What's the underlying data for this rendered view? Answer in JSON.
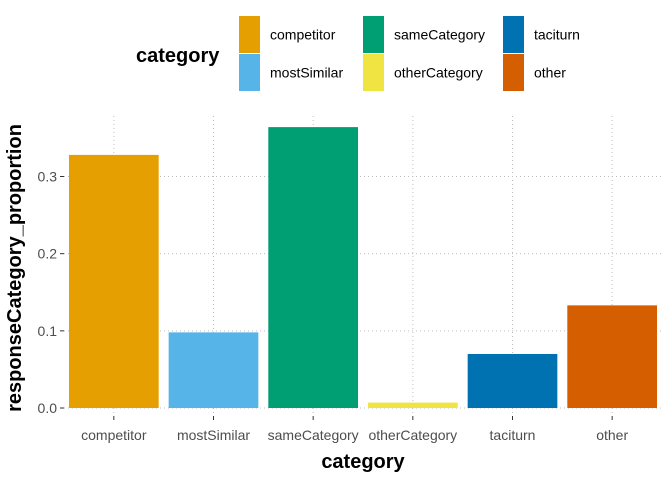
{
  "chart_data": {
    "type": "bar",
    "categories": [
      "competitor",
      "mostSimilar",
      "sameCategory",
      "otherCategory",
      "taciturn",
      "other"
    ],
    "values": [
      0.328,
      0.098,
      0.364,
      0.007,
      0.07,
      0.133
    ],
    "colors": [
      "#E69F00",
      "#56B4E9",
      "#009E73",
      "#F0E442",
      "#0072B2",
      "#D55E00"
    ],
    "xlabel": "category",
    "ylabel": "responseCategory_proportion",
    "ylim": [
      0,
      0.37
    ],
    "yticks": [
      0.0,
      0.1,
      0.2,
      0.3
    ],
    "ytick_labels": [
      "0.0",
      "0.1",
      "0.2",
      "0.3"
    ],
    "grid": true,
    "legend": {
      "title": "category",
      "position": "top",
      "entries": [
        {
          "label": "competitor",
          "color": "#E69F00"
        },
        {
          "label": "sameCategory",
          "color": "#009E73"
        },
        {
          "label": "taciturn",
          "color": "#0072B2"
        },
        {
          "label": "mostSimilar",
          "color": "#56B4E9"
        },
        {
          "label": "otherCategory",
          "color": "#F0E442"
        },
        {
          "label": "other",
          "color": "#D55E00"
        }
      ]
    }
  }
}
